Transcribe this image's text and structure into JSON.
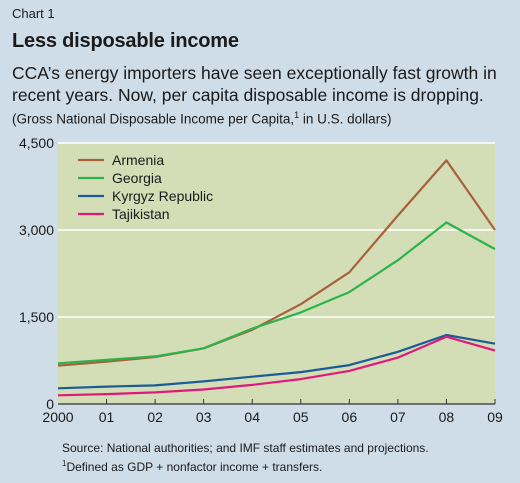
{
  "header": {
    "chart_label": "Chart 1",
    "title": "Less disposable income",
    "subtitle": "CCA’s energy importers have seen exceptionally fast growth in recent years. Now, per capita disposable income is dropping.",
    "units_before": "(Gross National Disposable Income per Capita,",
    "units_sup": "1",
    "units_after": " in U.S. dollars)"
  },
  "notes": {
    "source": "Source: National authorities; and IMF staff estimates and projections.",
    "footnote_sup": "1",
    "footnote": "Defined as GDP + nonfactor income + transfers."
  },
  "chart_data": {
    "type": "line",
    "x": [
      "2000",
      "01",
      "02",
      "03",
      "04",
      "05",
      "06",
      "07",
      "08",
      "09"
    ],
    "ylim": [
      0,
      4500
    ],
    "yticks": [
      "0",
      "1,500",
      "3,000",
      "4,500"
    ],
    "ytick_values": [
      0,
      1500,
      3000,
      4500
    ],
    "grid": true,
    "legend": "top-left",
    "plot_background": "#d3deb7",
    "series": [
      {
        "name": "Armenia",
        "color": "#a9613c",
        "values": [
          660,
          730,
          810,
          960,
          1280,
          1720,
          2270,
          3250,
          4200,
          3000
        ]
      },
      {
        "name": "Georgia",
        "color": "#2cb34a",
        "values": [
          700,
          760,
          820,
          960,
          1300,
          1580,
          1930,
          2480,
          3130,
          2670
        ]
      },
      {
        "name": "Kyrgyz Republic",
        "color": "#1a5c96",
        "values": [
          270,
          300,
          320,
          390,
          470,
          550,
          670,
          900,
          1190,
          1040
        ]
      },
      {
        "name": "Tajikistan",
        "color": "#e0197d",
        "values": [
          150,
          170,
          200,
          250,
          330,
          430,
          570,
          800,
          1160,
          920
        ]
      }
    ]
  }
}
